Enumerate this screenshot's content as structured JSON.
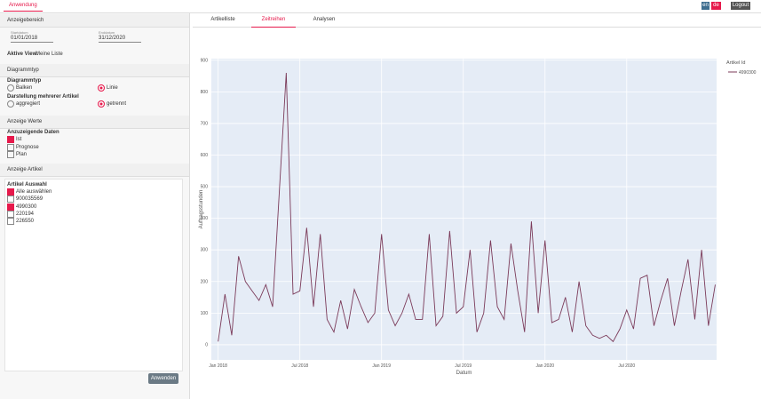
{
  "topbar": {
    "tab": "Anwendung",
    "lang_en": "en",
    "lang_de": "de",
    "logout": "Logout"
  },
  "sidebar": {
    "range": {
      "title": "Anzeigebereich",
      "start_label": "Startdatum",
      "start": "01/01/2018",
      "end_label": "Enddatum",
      "end": "31/12/2020",
      "active_label": "Aktive View:",
      "active": "Meine Liste"
    },
    "charttype": {
      "title": "Diagrammtyp",
      "group1": "Diagrammtyp",
      "options1": [
        {
          "label": "Balken",
          "checked": false
        },
        {
          "label": "Linie",
          "checked": true
        }
      ],
      "group2": "Darstellung mehrerer Artikel",
      "options2": [
        {
          "label": "aggregiert",
          "checked": false
        },
        {
          "label": "getrennt",
          "checked": true
        }
      ]
    },
    "values": {
      "title": "Anzeige Werte",
      "group": "Anzuzeigende Daten",
      "options": [
        {
          "label": "Ist",
          "checked": true
        },
        {
          "label": "Prognose",
          "checked": false
        },
        {
          "label": "Plan",
          "checked": false
        }
      ]
    },
    "articles": {
      "title": "Anzeige Artikel",
      "group": "Artikel Auswahl",
      "options": [
        {
          "label": "Alle auswählen",
          "checked": true
        },
        {
          "label": "900035569",
          "checked": false
        },
        {
          "label": "4990300",
          "checked": true
        },
        {
          "label": "220194",
          "checked": false
        },
        {
          "label": "226550",
          "checked": false
        }
      ],
      "button": "Anwenden"
    }
  },
  "tabs": [
    "Artikelliste",
    "Zeitreihen",
    "Analysen"
  ],
  "chart_data": {
    "type": "line",
    "x_label": "Datum",
    "y_label": "Auftragsstunden",
    "legend_title": "Artikel Id",
    "xlim": [
      -0.5,
      36.6
    ],
    "xticks": [
      {
        "value": 0,
        "label": "Jan 2018"
      },
      {
        "value": 6,
        "label": "Jul 2018"
      },
      {
        "value": 12,
        "label": "Jan 2019"
      },
      {
        "value": 18,
        "label": "Jul 2019"
      },
      {
        "value": 24,
        "label": "Jan 2020"
      },
      {
        "value": 30,
        "label": "Jul 2020"
      }
    ],
    "ylim": [
      -48,
      905
    ],
    "yticks": [
      0,
      100,
      200,
      300,
      400,
      500,
      600,
      700,
      800,
      900
    ],
    "grid": true,
    "x": [
      0,
      0.5,
      1,
      1.5,
      2,
      2.5,
      3,
      3.5,
      4,
      4.5,
      5,
      5.5,
      6,
      6.5,
      7,
      7.5,
      8,
      8.5,
      9,
      9.5,
      10,
      10.5,
      11,
      11.5,
      12,
      12.5,
      13,
      13.5,
      14,
      14.5,
      15,
      15.5,
      16,
      16.5,
      17,
      17.5,
      18,
      18.5,
      19,
      19.5,
      20,
      20.5,
      21,
      21.5,
      22,
      22.5,
      23,
      23.5,
      24,
      24.5,
      25,
      25.5,
      26,
      26.5,
      27,
      27.5,
      28,
      28.5,
      29,
      29.5,
      30,
      30.5,
      31,
      31.5,
      32,
      32.5,
      33,
      33.5,
      34,
      34.5,
      35,
      35.5,
      36,
      36.5
    ],
    "series": [
      {
        "name": "4990300",
        "color": "#7b3b5a",
        "values": [
          10,
          160,
          30,
          280,
          200,
          170,
          140,
          190,
          120,
          490,
          860,
          160,
          170,
          370,
          120,
          350,
          80,
          40,
          140,
          50,
          175,
          120,
          70,
          100,
          350,
          110,
          60,
          100,
          160,
          80,
          80,
          350,
          60,
          90,
          360,
          100,
          120,
          300,
          40,
          100,
          330,
          120,
          80,
          320,
          170,
          40,
          390,
          100,
          330,
          70,
          80,
          150,
          40,
          200,
          60,
          30,
          20,
          30,
          10,
          50,
          110,
          50,
          210,
          220,
          60,
          140,
          210,
          60,
          170,
          270,
          80,
          300,
          60,
          190
        ]
      }
    ]
  }
}
